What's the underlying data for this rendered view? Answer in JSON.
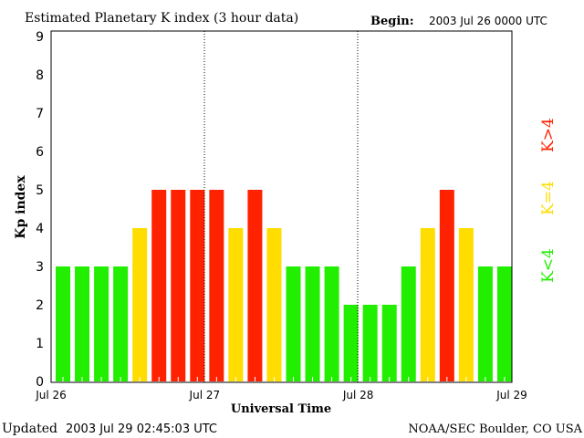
{
  "chart_data": {
    "type": "bar",
    "title": "Estimated Planetary K index (3 hour data)",
    "begin_label": "Begin:",
    "begin_value": "2003 Jul 26 0000 UTC",
    "xlabel": "Universal Time",
    "ylabel": "Kp index",
    "ylim": [
      0,
      9
    ],
    "yticks": [
      "0",
      "1",
      "2",
      "3",
      "4",
      "5",
      "6",
      "7",
      "8",
      "9"
    ],
    "xticks": [
      "Jul 26",
      "Jul 27",
      "Jul 28",
      "Jul 29"
    ],
    "values": [
      3,
      3,
      3,
      3,
      4,
      5,
      5,
      5,
      5,
      4,
      5,
      4,
      3,
      3,
      3,
      2,
      2,
      2,
      3,
      4,
      5,
      4,
      3,
      3
    ],
    "colors": {
      "low": "#22ee00",
      "equal": "#ffdd00",
      "high": "#ff2200"
    },
    "legend": {
      "low": "K<4",
      "equal": "K=4",
      "high": "K>4"
    },
    "legend_placement": "right"
  },
  "footer": {
    "updated_label": "Updated",
    "updated_value": "2003 Jul 29 02:45:03 UTC",
    "source": "NOAA/SEC Boulder, CO USA"
  }
}
